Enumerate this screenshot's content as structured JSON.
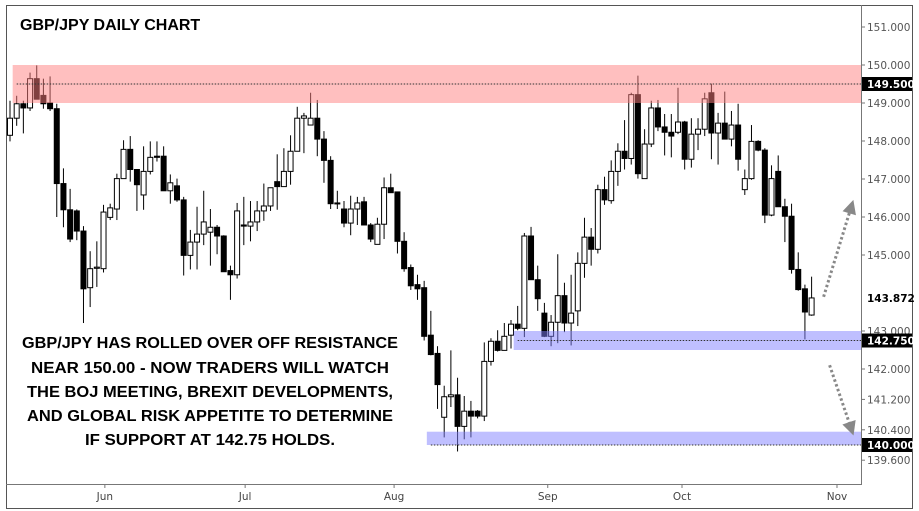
{
  "chart_data": {
    "type": "candlestick",
    "title": "GBP/JPY DAILY CHART",
    "ylim": [
      139.3,
      151.5
    ],
    "grid": false,
    "y_ticks": [
      "151.000",
      "150.000",
      "149.000",
      "148.000",
      "147.000",
      "146.000",
      "145.000",
      "143.000",
      "142.000",
      "141.200",
      "140.400",
      "139.600"
    ],
    "x_ticks": [
      {
        "label": "Jun",
        "index": 14.2
      },
      {
        "label": "Jul",
        "index": 35.2
      },
      {
        "label": "Aug",
        "index": 57.5
      },
      {
        "label": "Sep",
        "index": 80.5
      },
      {
        "label": "Oct",
        "index": 100.6
      },
      {
        "label": "Nov",
        "index": 123.8
      }
    ],
    "last_price": {
      "value": 143.872,
      "label": "143.872"
    },
    "zones": [
      {
        "name": "resistance",
        "level": 149.5,
        "label": "149.500",
        "from": 149.0,
        "to": 150.0,
        "start_index": 1,
        "color": "#ff8080"
      },
      {
        "name": "support",
        "level": 142.75,
        "label": "142.750",
        "from": 142.5,
        "to": 143.0,
        "start_index": 76,
        "color": "#8080ff"
      },
      {
        "name": "support",
        "level": 140.0,
        "label": "140.000",
        "from": 140.0,
        "to": 140.35,
        "start_index": 63,
        "color": "#8080ff"
      }
    ],
    "annotation": [
      "GBP/JPY HAS ROLLED OVER OFF RESISTANCE",
      "NEAR 150.00 - NOW TRADERS WILL WATCH",
      "THE BOJ MEETING, BREXIT DEVELOPMENTS,",
      "AND GLOBAL RISK APPETITE TO DETERMINE",
      "IF SUPPORT AT 142.75 HOLDS."
    ],
    "scenario_arrows": [
      {
        "direction": "up",
        "from": 143.9,
        "to": 146.3
      },
      {
        "direction": "down",
        "from": 142.1,
        "to": 140.4
      }
    ],
    "ohlc": [
      [
        148.15,
        149.06,
        147.99,
        148.6
      ],
      [
        148.6,
        149.19,
        148.4,
        148.98
      ],
      [
        148.98,
        149.06,
        148.2,
        148.87
      ],
      [
        148.87,
        149.8,
        148.79,
        149.64
      ],
      [
        149.64,
        149.99,
        149.1,
        149.1
      ],
      [
        149.2,
        149.64,
        148.85,
        148.98
      ],
      [
        149.0,
        149.7,
        148.79,
        148.85
      ],
      [
        148.85,
        148.98,
        146.0,
        146.88
      ],
      [
        146.88,
        147.28,
        145.73,
        146.19
      ],
      [
        146.19,
        146.74,
        145.34,
        145.42
      ],
      [
        146.16,
        146.2,
        145.39,
        145.63
      ],
      [
        145.63,
        145.76,
        143.21,
        144.11
      ],
      [
        144.14,
        145.1,
        143.63,
        144.64
      ],
      [
        144.65,
        145.36,
        144.16,
        144.68
      ],
      [
        144.64,
        146.32,
        144.54,
        146.13
      ],
      [
        145.99,
        146.35,
        145.92,
        146.24
      ],
      [
        146.21,
        147.14,
        145.92,
        147.01
      ],
      [
        147.01,
        148.02,
        147.0,
        147.78
      ],
      [
        147.78,
        148.13,
        146.93,
        147.25
      ],
      [
        147.25,
        147.25,
        146.16,
        146.85
      ],
      [
        146.58,
        147.86,
        146.19,
        147.2
      ],
      [
        147.2,
        147.99,
        147.12,
        147.57
      ],
      [
        147.6,
        147.99,
        147.46,
        147.57
      ],
      [
        147.6,
        147.86,
        146.69,
        146.69
      ],
      [
        146.69,
        147.12,
        146.35,
        146.9
      ],
      [
        146.82,
        147.01,
        146.4,
        146.45
      ],
      [
        146.45,
        146.53,
        144.46,
        144.99
      ],
      [
        144.99,
        145.66,
        144.62,
        145.34
      ],
      [
        145.34,
        146.27,
        144.62,
        145.55
      ],
      [
        145.55,
        146.69,
        145.26,
        145.87
      ],
      [
        145.6,
        146.21,
        144.72,
        145.73
      ],
      [
        145.73,
        145.79,
        145.02,
        145.5
      ],
      [
        145.5,
        145.52,
        144.56,
        144.56
      ],
      [
        144.59,
        144.72,
        143.82,
        144.48
      ],
      [
        144.48,
        146.37,
        144.38,
        146.16
      ],
      [
        145.79,
        146.53,
        145.26,
        145.76
      ],
      [
        145.76,
        146.42,
        145.36,
        145.87
      ],
      [
        145.87,
        146.42,
        145.63,
        146.16
      ],
      [
        146.16,
        146.88,
        145.9,
        146.29
      ],
      [
        146.29,
        146.77,
        146.16,
        146.77
      ],
      [
        146.93,
        147.65,
        146.19,
        146.8
      ],
      [
        146.8,
        147.81,
        146.85,
        147.2
      ],
      [
        147.2,
        148.15,
        146.85,
        147.73
      ],
      [
        147.73,
        148.9,
        147.73,
        148.6
      ],
      [
        148.6,
        148.74,
        147.68,
        148.66
      ],
      [
        148.42,
        149.27,
        148.42,
        148.6
      ],
      [
        148.6,
        149.08,
        147.6,
        148.05
      ],
      [
        148.05,
        148.26,
        146.9,
        147.49
      ],
      [
        147.49,
        147.6,
        146.21,
        146.35
      ],
      [
        146.37,
        146.69,
        146.21,
        146.35
      ],
      [
        146.21,
        146.42,
        145.73,
        145.84
      ],
      [
        145.84,
        146.56,
        145.52,
        146.21
      ],
      [
        146.21,
        146.53,
        145.79,
        146.37
      ],
      [
        146.4,
        146.53,
        145.79,
        145.79
      ],
      [
        145.79,
        145.84,
        145.34,
        145.42
      ],
      [
        145.28,
        145.98,
        145.28,
        145.81
      ],
      [
        145.81,
        147.04,
        145.42,
        146.77
      ],
      [
        146.77,
        147.14,
        146.64,
        146.64
      ],
      [
        146.66,
        146.66,
        145.04,
        145.36
      ],
      [
        145.36,
        145.6,
        144.56,
        144.64
      ],
      [
        144.67,
        144.75,
        144.08,
        144.19
      ],
      [
        144.22,
        144.48,
        143.82,
        144.11
      ],
      [
        144.14,
        144.32,
        142.75,
        142.86
      ],
      [
        142.89,
        143.53,
        142.36,
        142.38
      ],
      [
        142.41,
        142.6,
        140.95,
        141.59
      ],
      [
        140.73,
        141.56,
        140.2,
        141.27
      ],
      [
        141.27,
        142.49,
        141.0,
        141.32
      ],
      [
        141.32,
        141.77,
        139.83,
        140.49
      ],
      [
        140.49,
        141.29,
        140.15,
        140.89
      ],
      [
        140.89,
        141.16,
        140.2,
        140.76
      ],
      [
        140.89,
        140.92,
        140.7,
        140.76
      ],
      [
        140.76,
        142.7,
        140.63,
        142.2
      ],
      [
        142.2,
        142.81,
        142.09,
        142.73
      ],
      [
        142.73,
        143.02,
        142.46,
        142.49
      ],
      [
        142.49,
        143.21,
        142.49,
        142.86
      ],
      [
        142.89,
        143.29,
        142.54,
        143.18
      ],
      [
        143.18,
        143.66,
        143.02,
        143.07
      ],
      [
        143.07,
        145.58,
        142.84,
        145.5
      ],
      [
        145.5,
        145.74,
        144.35,
        144.35
      ],
      [
        144.35,
        144.72,
        143.53,
        143.85
      ],
      [
        143.47,
        143.74,
        142.84,
        142.86
      ],
      [
        142.86,
        143.42,
        142.6,
        143.23
      ],
      [
        143.23,
        145.02,
        142.68,
        143.93
      ],
      [
        143.93,
        144.27,
        142.97,
        143.21
      ],
      [
        143.21,
        144.48,
        142.62,
        143.47
      ],
      [
        143.53,
        145.07,
        143.13,
        144.78
      ],
      [
        144.78,
        145.98,
        144.4,
        145.47
      ],
      [
        145.47,
        145.71,
        144.72,
        145.15
      ],
      [
        145.15,
        146.85,
        145.04,
        146.72
      ],
      [
        146.72,
        147.06,
        146.32,
        146.45
      ],
      [
        146.43,
        147.49,
        146.35,
        147.2
      ],
      [
        147.2,
        147.94,
        146.82,
        147.73
      ],
      [
        147.73,
        148.55,
        147.25,
        147.54
      ],
      [
        147.54,
        149.27,
        147.38,
        149.22
      ],
      [
        149.22,
        149.72,
        147.01,
        147.14
      ],
      [
        147.01,
        148.31,
        147.01,
        147.92
      ],
      [
        147.92,
        149.06,
        147.84,
        148.87
      ],
      [
        148.87,
        149.08,
        148.26,
        148.37
      ],
      [
        148.37,
        148.71,
        147.62,
        148.23
      ],
      [
        148.23,
        148.71,
        147.57,
        148.13
      ],
      [
        148.23,
        149.4,
        148.18,
        148.5
      ],
      [
        148.5,
        148.53,
        147.25,
        147.52
      ],
      [
        147.52,
        148.6,
        147.3,
        148.18
      ],
      [
        148.18,
        148.6,
        147.76,
        148.31
      ],
      [
        148.31,
        149.27,
        148.13,
        149.11
      ],
      [
        149.27,
        149.51,
        147.52,
        148.21
      ],
      [
        148.21,
        148.74,
        147.38,
        148.47
      ],
      [
        148.47,
        149.3,
        148.05,
        148.05
      ],
      [
        148.05,
        148.79,
        147.86,
        148.42
      ],
      [
        148.42,
        148.98,
        147.22,
        147.52
      ],
      [
        146.72,
        147.25,
        146.58,
        147.01
      ],
      [
        147.01,
        148.42,
        146.98,
        147.99
      ],
      [
        147.99,
        148.02,
        147.73,
        147.76
      ],
      [
        147.76,
        147.81,
        145.84,
        146.05
      ],
      [
        146.05,
        147.36,
        146.02,
        147.01
      ],
      [
        147.2,
        147.62,
        146.27,
        146.27
      ],
      [
        146.27,
        146.48,
        145.34,
        146.02
      ],
      [
        146.02,
        146.35,
        144.51,
        144.62
      ],
      [
        144.62,
        145.07,
        144.06,
        144.09
      ],
      [
        144.11,
        144.22,
        142.78,
        143.5
      ],
      [
        143.42,
        144.43,
        143.4,
        143.87
      ]
    ]
  }
}
